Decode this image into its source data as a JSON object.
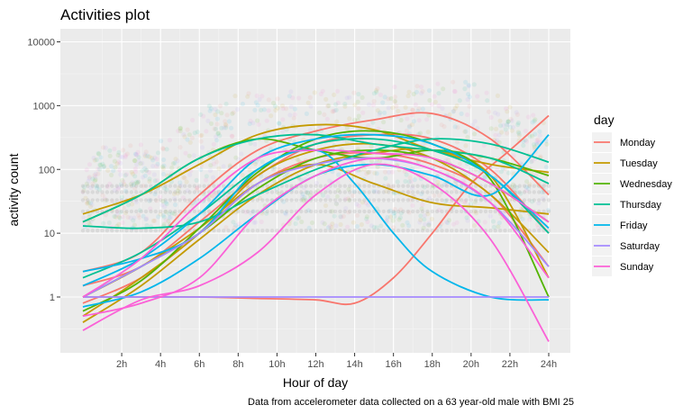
{
  "chart_data": {
    "type": "line",
    "title": "Activities plot",
    "xlabel": "Hour of day",
    "ylabel": "activity count",
    "caption": "Data from accelerometer data collected on a 63 year-old male with BMI 25",
    "y_scale": "log10",
    "ylim": [
      0.2,
      20000
    ],
    "xlim": [
      0,
      24
    ],
    "x_ticks": [
      2,
      4,
      6,
      8,
      10,
      12,
      14,
      16,
      18,
      20,
      22,
      24
    ],
    "x_tick_labels": [
      "2h",
      "4h",
      "6h",
      "8h",
      "10h",
      "12h",
      "14h",
      "16h",
      "18h",
      "20h",
      "22h",
      "24h"
    ],
    "y_ticks": [
      1,
      10,
      100,
      1000,
      10000
    ],
    "y_tick_labels": [
      "1",
      "10",
      "100",
      "1000",
      "10000"
    ],
    "grid": true,
    "legend": {
      "title": "day",
      "position": "right",
      "entries": [
        "Monday",
        "Tuesday",
        "Wednesday",
        "Thursday",
        "Friday",
        "Saturday",
        "Sunday"
      ]
    },
    "series": [
      {
        "name": "Monday",
        "color": "#F8766D",
        "curves": [
          {
            "x": [
              0,
              3,
              6,
              9,
              12,
              14,
              16,
              18,
              20,
              22,
              24
            ],
            "y": [
              1,
              1,
              1,
              0.95,
              0.9,
              0.8,
              2,
              10,
              60,
              200,
              700
            ]
          },
          {
            "x": [
              0,
              3,
              6,
              9,
              12,
              15,
              18,
              21,
              24
            ],
            "y": [
              2.5,
              5,
              40,
              200,
              400,
              600,
              750,
              300,
              40
            ]
          },
          {
            "x": [
              0,
              3,
              6,
              9,
              12,
              15,
              18,
              21,
              24
            ],
            "y": [
              1.5,
              3,
              15,
              80,
              250,
              350,
              300,
              100,
              10
            ]
          },
          {
            "x": [
              0,
              3,
              6,
              9,
              12,
              15,
              18,
              21,
              24
            ],
            "y": [
              0.8,
              2,
              10,
              60,
              150,
              180,
              120,
              40,
              3
            ]
          }
        ]
      },
      {
        "name": "Tuesday",
        "color": "#C49A00",
        "curves": [
          {
            "x": [
              0,
              3,
              6,
              9,
              12,
              15,
              18,
              21,
              24
            ],
            "y": [
              20,
              40,
              120,
              350,
              500,
              420,
              200,
              120,
              90
            ]
          },
          {
            "x": [
              0,
              3,
              6,
              9,
              12,
              15,
              18,
              21,
              24
            ],
            "y": [
              1,
              3,
              12,
              60,
              120,
              60,
              30,
              25,
              20
            ]
          },
          {
            "x": [
              0,
              3,
              6,
              9,
              12,
              15,
              18,
              21,
              24
            ],
            "y": [
              0.5,
              2,
              10,
              80,
              200,
              250,
              150,
              40,
              5
            ]
          },
          {
            "x": [
              0,
              3,
              6,
              9,
              12,
              15,
              18,
              21,
              24
            ],
            "y": [
              0.4,
              1.5,
              8,
              40,
              120,
              180,
              200,
              80,
              2
            ]
          }
        ]
      },
      {
        "name": "Wednesday",
        "color": "#53B400",
        "curves": [
          {
            "x": [
              0,
              3,
              6,
              9,
              12,
              15,
              18,
              21,
              24
            ],
            "y": [
              15,
              40,
              150,
              300,
              200,
              150,
              200,
              150,
              80
            ]
          },
          {
            "x": [
              0,
              3,
              6,
              9,
              12,
              15,
              18,
              21,
              24
            ],
            "y": [
              1,
              3,
              10,
              50,
              150,
              200,
              150,
              60,
              15
            ]
          },
          {
            "x": [
              0,
              3,
              6,
              9,
              12,
              15,
              18,
              21,
              24
            ],
            "y": [
              0.6,
              1.8,
              12,
              90,
              300,
              400,
              250,
              70,
              1
            ]
          }
        ]
      },
      {
        "name": "Thursday",
        "color": "#00C094",
        "curves": [
          {
            "x": [
              0,
              3,
              6,
              9,
              12,
              15,
              18,
              21,
              24
            ],
            "y": [
              13,
              12,
              15,
              40,
              100,
              200,
              300,
              250,
              130
            ]
          },
          {
            "x": [
              0,
              3,
              6,
              9,
              12,
              15,
              18,
              21,
              24
            ],
            "y": [
              15,
              40,
              150,
              300,
              350,
              250,
              200,
              150,
              60
            ]
          },
          {
            "x": [
              0,
              3,
              6,
              9,
              12,
              15,
              18,
              21,
              24
            ],
            "y": [
              2,
              5,
              20,
              100,
              250,
              300,
              200,
              80,
              10
            ]
          }
        ]
      },
      {
        "name": "Friday",
        "color": "#00B6EB",
        "curves": [
          {
            "x": [
              0,
              3,
              6,
              9,
              12,
              15,
              18,
              21,
              24
            ],
            "y": [
              0.7,
              1.2,
              4,
              20,
              80,
              120,
              80,
              40,
              350
            ]
          },
          {
            "x": [
              0,
              3,
              6,
              9,
              12,
              14,
              16,
              18,
              21,
              24
            ],
            "y": [
              2.5,
              4,
              10,
              100,
              200,
              60,
              10,
              2.5,
              1,
              0.9
            ]
          },
          {
            "x": [
              0,
              3,
              6,
              9,
              12,
              15,
              18,
              21,
              24
            ],
            "y": [
              1.5,
              4,
              20,
              150,
              300,
              350,
              250,
              80,
              12
            ]
          }
        ]
      },
      {
        "name": "Saturday",
        "color": "#A58AFF",
        "curves": [
          {
            "x": [
              0,
              24
            ],
            "y": [
              1,
              1
            ]
          },
          {
            "x": [
              0,
              3,
              6,
              9,
              12,
              15,
              18,
              21,
              24
            ],
            "y": [
              1,
              3,
              10,
              60,
              120,
              150,
              100,
              30,
              3
            ]
          }
        ]
      },
      {
        "name": "Sunday",
        "color": "#FB61D7",
        "curves": [
          {
            "x": [
              0,
              3,
              6,
              9,
              12,
              15,
              18,
              21,
              24
            ],
            "y": [
              0.3,
              0.9,
              1.5,
              5,
              40,
              120,
              60,
              8,
              0.2
            ]
          },
          {
            "x": [
              0,
              3,
              6,
              9,
              12,
              15,
              18,
              21,
              24
            ],
            "y": [
              1,
              4,
              30,
              150,
              200,
              180,
              150,
              60,
              15
            ]
          },
          {
            "x": [
              0,
              3,
              6,
              9,
              12,
              15,
              18,
              21,
              24
            ],
            "y": [
              0.5,
              0.8,
              2,
              20,
              80,
              150,
              100,
              30,
              2
            ]
          }
        ]
      }
    ]
  }
}
